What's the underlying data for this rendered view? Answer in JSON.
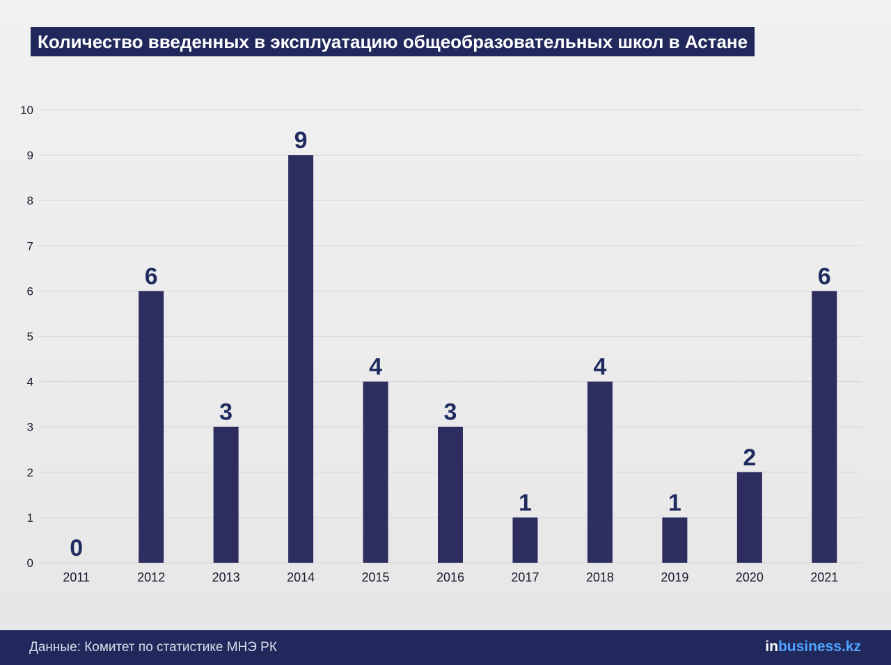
{
  "title": "Количество введенных в эксплуатацию общеобразовательных школ в Астане",
  "chart_data": {
    "type": "bar",
    "categories": [
      "2011",
      "2012",
      "2013",
      "2014",
      "2015",
      "2016",
      "2017",
      "2018",
      "2019",
      "2020",
      "2021"
    ],
    "values": [
      0,
      6,
      3,
      9,
      4,
      3,
      1,
      4,
      1,
      2,
      6
    ],
    "ylim": [
      0,
      10
    ],
    "yticks": [
      "0",
      "1",
      "2",
      "3",
      "4",
      "5",
      "6",
      "7",
      "8",
      "9",
      "10"
    ],
    "grid": true,
    "legend": "none",
    "bar_color": "#2e2d60",
    "label_color": "#1f2b5e"
  },
  "footer": {
    "source": "Данные: Комитет по статистике МНЭ РК",
    "brand_in": "in",
    "brand_rest": "business.kz"
  },
  "colors": {
    "header_bg": "#21295c",
    "grid": "#d6d6d6",
    "brand_accent": "#4ea3ff"
  }
}
